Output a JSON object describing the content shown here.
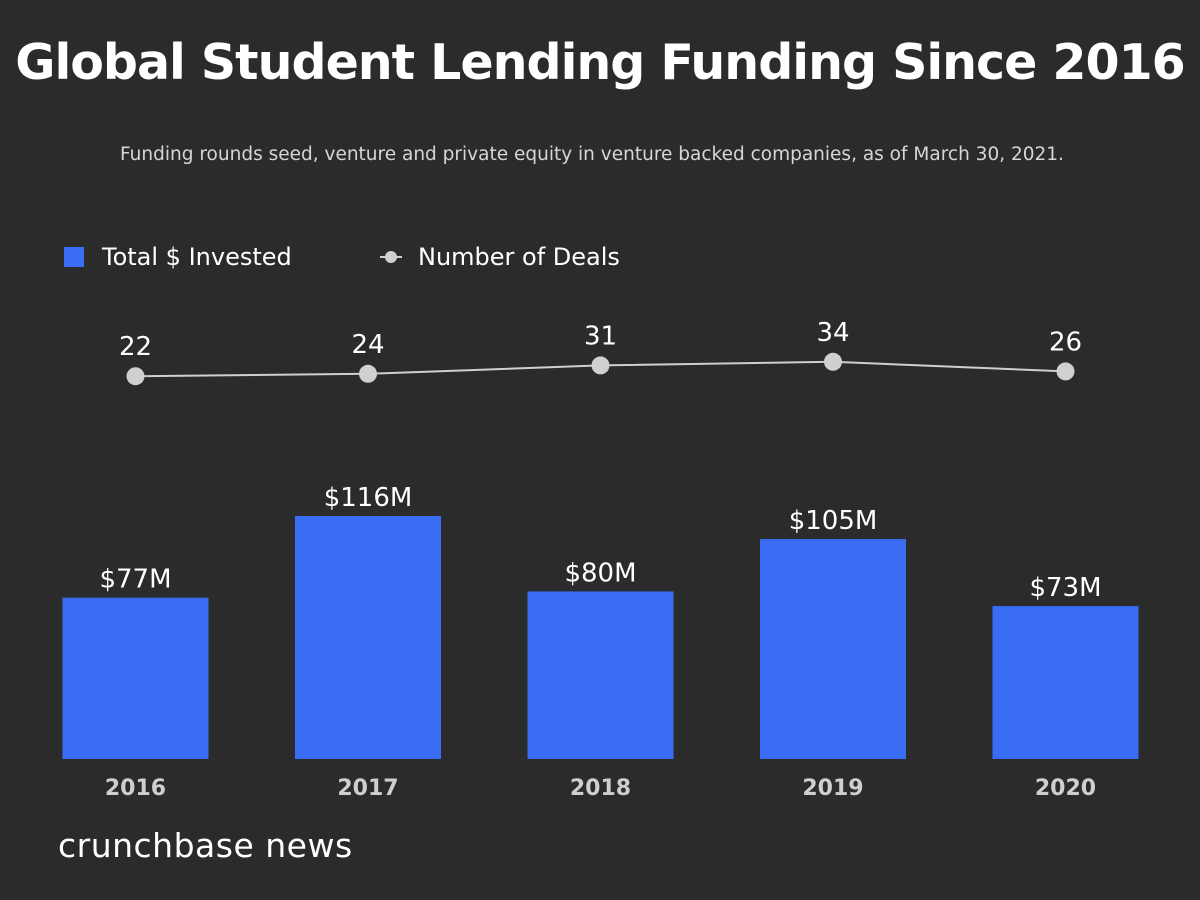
{
  "title": "Global Student Lending Funding Since 2016",
  "subtitle": "Funding rounds seed, venture and private equity in venture backed companies, as of March 30, 2021.",
  "legend": {
    "bar_label": "Total $ Invested",
    "line_label": "Number of Deals"
  },
  "brand": "crunchbase news",
  "colors": {
    "background": "#2b2b2b",
    "bar": "#3a6cf4",
    "line": "#d0d0d0",
    "text": "#ffffff",
    "tick_text": "#cfcfcf"
  },
  "chart_data": {
    "type": "bar",
    "categories": [
      "2016",
      "2017",
      "2018",
      "2019",
      "2020"
    ],
    "series": [
      {
        "name": "Total $ Invested",
        "type": "bar",
        "unit": "$M",
        "values": [
          77,
          116,
          80,
          105,
          73
        ],
        "labels": [
          "$77M",
          "$116M",
          "$80M",
          "$105M",
          "$73M"
        ]
      },
      {
        "name": "Number of Deals",
        "type": "line",
        "values": [
          22,
          24,
          31,
          34,
          26
        ],
        "labels": [
          "22",
          "24",
          "31",
          "34",
          "26"
        ]
      }
    ],
    "legend": "top-left",
    "grid": false
  }
}
